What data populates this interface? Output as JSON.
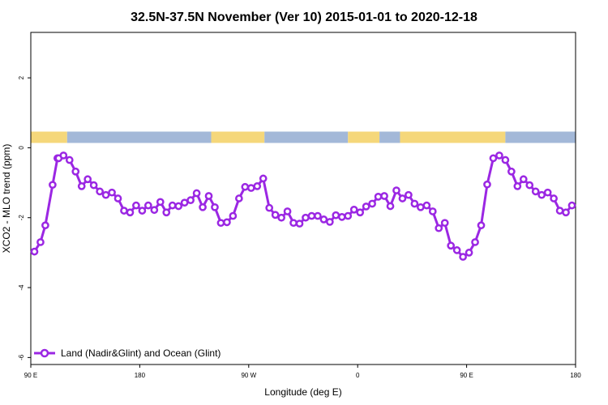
{
  "chart_data": {
    "type": "line",
    "title": "32.5N-37.5N November (Ver 10)   2015-01-01 to 2020-12-18",
    "xlabel": "Longitude (deg E)",
    "ylabel": "XCO2 - MLO trend (ppm)",
    "xlim": [
      90,
      540
    ],
    "ylim": [
      -6.2,
      3.3
    ],
    "x_ticks": [
      {
        "value": 90,
        "label": "90 E"
      },
      {
        "value": 180,
        "label": "180"
      },
      {
        "value": 270,
        "label": "90 W"
      },
      {
        "value": 360,
        "label": "0"
      },
      {
        "value": 450,
        "label": "90 E"
      },
      {
        "value": 540,
        "label": "180"
      }
    ],
    "y_ticks": [
      {
        "value": 2,
        "label": "2"
      },
      {
        "value": 0,
        "label": "0"
      },
      {
        "value": -2,
        "label": "-2"
      },
      {
        "value": -4,
        "label": "-4"
      },
      {
        "value": -6,
        "label": "-6"
      }
    ],
    "grid": false,
    "legend_position": "bottom-left",
    "land_color": "#f5d77a",
    "ocean_color": "#a3b8d8",
    "series_color": "#9b27e3",
    "surface_bar_y": 0.3,
    "surface_segments": [
      {
        "type": "land",
        "start": 90,
        "end": 120
      },
      {
        "type": "ocean",
        "start": 120,
        "end": 239
      },
      {
        "type": "land",
        "start": 239,
        "end": 283
      },
      {
        "type": "ocean",
        "start": 283,
        "end": 352
      },
      {
        "type": "land",
        "start": 352,
        "end": 378
      },
      {
        "type": "ocean",
        "start": 378,
        "end": 395
      },
      {
        "type": "land",
        "start": 395,
        "end": 482
      },
      {
        "type": "ocean",
        "start": 482,
        "end": 540
      }
    ],
    "series": [
      {
        "name": "Land (Nadir&Glint) and Ocean (Glint)",
        "x": [
          93,
          98,
          102,
          108,
          112,
          113,
          117,
          122,
          127,
          132,
          137,
          142,
          147,
          152,
          157,
          162,
          167,
          172,
          177,
          182,
          187,
          192,
          197,
          202,
          207,
          212,
          217,
          222,
          227,
          232,
          237,
          242,
          247,
          252,
          257,
          262,
          267,
          272,
          277,
          282,
          287,
          292,
          297,
          302,
          307,
          312,
          317,
          322,
          327,
          332,
          337,
          342,
          347,
          352,
          357,
          362,
          367,
          372,
          377,
          382,
          387,
          392,
          397,
          402,
          407,
          412,
          417,
          422,
          427,
          432,
          437,
          442,
          447,
          452,
          457,
          462,
          467,
          472,
          477,
          482,
          487,
          492,
          497,
          502,
          507,
          512,
          517,
          522,
          527,
          532,
          537
        ],
        "values": [
          -2.97,
          -2.7,
          -2.22,
          -1.06,
          -0.3,
          -0.3,
          -0.22,
          -0.35,
          -0.68,
          -1.1,
          -0.9,
          -1.07,
          -1.25,
          -1.35,
          -1.28,
          -1.45,
          -1.8,
          -1.85,
          -1.65,
          -1.8,
          -1.65,
          -1.78,
          -1.55,
          -1.85,
          -1.65,
          -1.67,
          -1.57,
          -1.5,
          -1.3,
          -1.7,
          -1.38,
          -1.7,
          -2.15,
          -2.13,
          -1.95,
          -1.45,
          -1.12,
          -1.15,
          -1.1,
          -0.88,
          -1.72,
          -1.92,
          -2.0,
          -1.82,
          -2.15,
          -2.17,
          -2.0,
          -1.95,
          -1.95,
          -2.05,
          -2.12,
          -1.93,
          -1.98,
          -1.95,
          -1.77,
          -1.85,
          -1.68,
          -1.6,
          -1.4,
          -1.38,
          -1.67,
          -1.22,
          -1.45,
          -1.35,
          -1.6,
          -1.7,
          -1.65,
          -1.82,
          -2.3,
          -2.15,
          -2.8,
          -2.93,
          -3.12,
          -3.0,
          -2.7,
          -2.22,
          -1.05,
          -0.3,
          -0.22,
          -0.35,
          -0.68,
          -1.1,
          -0.9,
          -1.07,
          -1.25,
          -1.35,
          -1.28,
          -1.45,
          -1.8,
          -1.85,
          -1.65
        ]
      }
    ]
  }
}
